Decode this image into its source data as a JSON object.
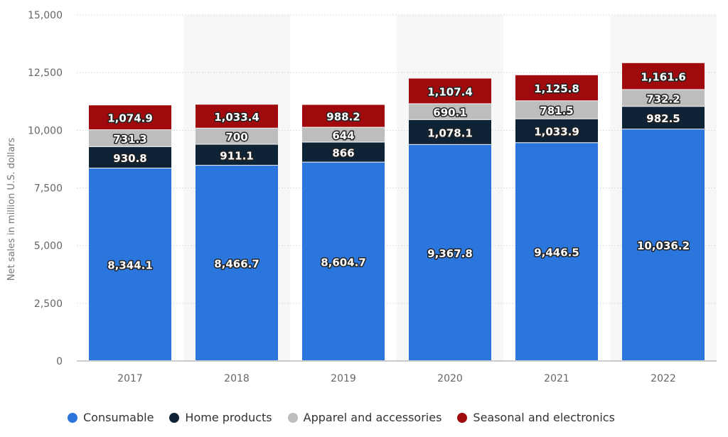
{
  "chart_data": {
    "type": "stacked-bar",
    "categories": [
      "2017",
      "2018",
      "2019",
      "2020",
      "2021",
      "2022"
    ],
    "series": [
      {
        "name": "Consumable",
        "color": "#2a76dd",
        "values": [
          8344.1,
          8466.7,
          8604.7,
          9367.8,
          9446.5,
          10036.2
        ],
        "labels": [
          "8,344.1",
          "8,466.7",
          "8,604.7",
          "9,367.8",
          "9,446.5",
          "10,036.2"
        ]
      },
      {
        "name": "Home products",
        "color": "#0f2337",
        "values": [
          930.8,
          911.1,
          866,
          1078.1,
          1033.9,
          982.5
        ],
        "labels": [
          "930.8",
          "911.1",
          "866",
          "1,078.1",
          "1,033.9",
          "982.5"
        ]
      },
      {
        "name": "Apparel and accessories",
        "color": "#bdbdbd",
        "values": [
          731.3,
          700,
          644,
          690.1,
          781.5,
          732.2
        ],
        "labels": [
          "731.3",
          "700",
          "644",
          "690.1",
          "781.5",
          "732.2"
        ]
      },
      {
        "name": "Seasonal and electronics",
        "color": "#a10a0c",
        "values": [
          1074.9,
          1033.4,
          988.2,
          1107.4,
          1125.8,
          1161.6
        ],
        "labels": [
          "1,074.9",
          "1,033.4",
          "988.2",
          "1,107.4",
          "1,125.8",
          "1,161.6"
        ]
      }
    ],
    "ylabel": "Net sales in million U.S. dollars",
    "ylim": [
      0,
      15000
    ],
    "yticks": [
      0,
      2500,
      5000,
      7500,
      10000,
      12500,
      15000
    ],
    "ytick_labels": [
      "0",
      "2,500",
      "5,000",
      "7,500",
      "10,000",
      "12,500",
      "15,000"
    ],
    "grid": true,
    "legend_position": "bottom"
  }
}
